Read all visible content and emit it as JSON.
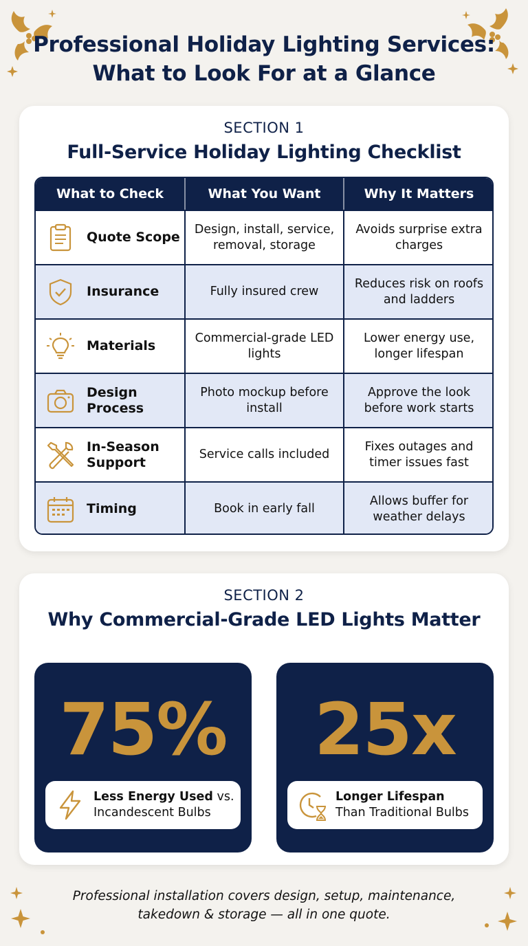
{
  "title_line1": "Professional Holiday Lighting Services:",
  "title_line2": "What to Look For at a Glance",
  "section1": {
    "label": "SECTION 1",
    "title": "Full-Service Holiday Lighting Checklist",
    "headers": [
      "What to Check",
      "What You Want",
      "Why It Matters"
    ],
    "rows": [
      {
        "icon": "clipboard-icon",
        "check": "Quote Scope",
        "want": "Design, install, service, removal, storage",
        "why": "Avoids surprise extra charges"
      },
      {
        "icon": "shield-check-icon",
        "check": "Insurance",
        "want": "Fully insured crew",
        "why": "Reduces risk on roofs and ladders"
      },
      {
        "icon": "lightbulb-icon",
        "check": "Materials",
        "want": "Commercial-grade LED lights",
        "why": "Lower energy use, longer lifespan"
      },
      {
        "icon": "camera-icon",
        "check": "Design Process",
        "want": "Photo mockup before install",
        "why": "Approve the look before work starts"
      },
      {
        "icon": "tools-icon",
        "check": "In-Season Support",
        "want": "Service calls included",
        "why": "Fixes outages and timer issues fast"
      },
      {
        "icon": "calendar-icon",
        "check": "Timing",
        "want": "Book in early fall",
        "why": "Allows buffer for weather delays"
      }
    ]
  },
  "section2": {
    "label": "SECTION 2",
    "title": "Why Commercial-Grade LED Lights Matter",
    "stats": [
      {
        "icon": "lightning-icon",
        "value": "75%",
        "bold": "Less Energy Used",
        "rest1": " vs.",
        "line2": "Incandescent Bulbs"
      },
      {
        "icon": "clock-hourglass-icon",
        "value": "25x",
        "bold": "Longer Lifespan",
        "rest1": "",
        "line2": "Than Traditional Bulbs"
      }
    ]
  },
  "footer_line1": "Professional installation covers design, setup, maintenance,",
  "footer_line2": "takedown & storage — all in one quote.",
  "colors": {
    "navy": "#0f2148",
    "gold": "#c9943b",
    "row_alt": "#e2e8f6",
    "background": "#f4f2ee"
  }
}
